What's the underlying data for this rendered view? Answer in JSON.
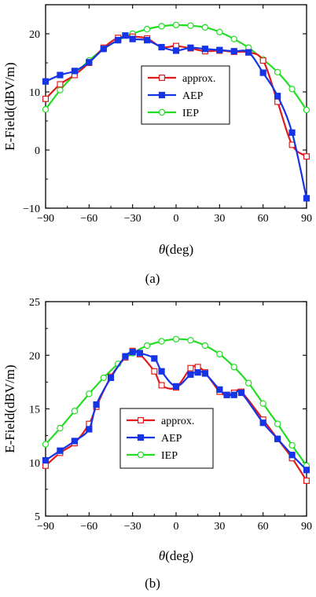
{
  "chart_data": [
    {
      "type": "line",
      "panel_label": "(a)",
      "xlabel": "θ(deg)",
      "ylabel": "E-Field(dBV/m)",
      "xlim": [
        -90,
        90
      ],
      "ylim": [
        -10,
        25
      ],
      "xticks": [
        "−90",
        "−60",
        "−30",
        "0",
        "30",
        "60",
        "90"
      ],
      "yticks": [
        "−10",
        "0",
        "10",
        "20"
      ],
      "legend_position": "center-right",
      "series": [
        {
          "name": "approx.",
          "color": "#e31a1c",
          "marker": "open-square",
          "x": [
            -90,
            -80,
            -70,
            -60,
            -50,
            -40,
            -30,
            -20,
            -10,
            0,
            10,
            20,
            30,
            40,
            50,
            60,
            70,
            80,
            90
          ],
          "y": [
            8.8,
            11.3,
            12.9,
            15.0,
            17.6,
            19.3,
            19.5,
            19.2,
            17.7,
            17.9,
            17.5,
            17.0,
            17.1,
            16.9,
            16.8,
            15.4,
            8.3,
            0.9,
            -1.1
          ]
        },
        {
          "name": "AEP",
          "color": "#1434e6",
          "marker": "filled-square",
          "x": [
            -90,
            -80,
            -70,
            -60,
            -50,
            -40,
            -35,
            -30,
            -20,
            -10,
            0,
            10,
            20,
            30,
            40,
            50,
            60,
            70,
            80,
            90
          ],
          "y": [
            11.8,
            12.9,
            13.6,
            15.1,
            17.4,
            18.9,
            19.7,
            19.1,
            18.9,
            17.7,
            17.1,
            17.6,
            17.4,
            17.2,
            17.0,
            16.8,
            13.3,
            9.3,
            3.0,
            -8.3
          ]
        },
        {
          "name": "IEP",
          "color": "#22dd22",
          "marker": "open-circle",
          "x": [
            -90,
            -80,
            -70,
            -60,
            -50,
            -40,
            -30,
            -20,
            -10,
            0,
            10,
            20,
            30,
            40,
            50,
            60,
            70,
            80,
            90
          ],
          "y": [
            7.0,
            10.3,
            13.0,
            15.4,
            17.4,
            18.9,
            20.0,
            20.8,
            21.3,
            21.5,
            21.4,
            21.1,
            20.3,
            19.1,
            17.6,
            15.6,
            13.4,
            10.5,
            6.9
          ]
        }
      ]
    },
    {
      "type": "line",
      "panel_label": "(b)",
      "xlabel": "θ(deg)",
      "ylabel": "E-Field(dBV/m)",
      "xlim": [
        -90,
        90
      ],
      "ylim": [
        5,
        25
      ],
      "xticks": [
        "−90",
        "−60",
        "−30",
        "0",
        "30",
        "60",
        "90"
      ],
      "yticks": [
        "5",
        "10",
        "15",
        "20",
        "25"
      ],
      "legend_position": "bottom-center",
      "series": [
        {
          "name": "approx.",
          "color": "#e31a1c",
          "marker": "open-square",
          "x": [
            -90,
            -80,
            -70,
            -60,
            -55,
            -45,
            -35,
            -30,
            -25,
            -15,
            -10,
            0,
            10,
            15,
            20,
            30,
            35,
            40,
            45,
            60,
            70,
            80,
            90
          ],
          "y": [
            9.7,
            10.9,
            11.8,
            13.6,
            15.2,
            18.0,
            19.8,
            20.4,
            20.1,
            18.5,
            17.2,
            17.0,
            18.8,
            18.9,
            18.4,
            16.6,
            16.3,
            16.5,
            16.6,
            14.0,
            12.2,
            10.4,
            8.3
          ]
        },
        {
          "name": "AEP",
          "color": "#1434e6",
          "marker": "filled-square",
          "x": [
            -90,
            -80,
            -70,
            -60,
            -55,
            -45,
            -35,
            -30,
            -25,
            -15,
            -10,
            0,
            10,
            15,
            20,
            30,
            35,
            40,
            45,
            60,
            70,
            80,
            90
          ],
          "y": [
            10.2,
            11.1,
            12.0,
            13.1,
            15.4,
            17.9,
            19.9,
            20.3,
            20.2,
            19.7,
            18.5,
            17.1,
            18.2,
            18.4,
            18.3,
            16.8,
            16.3,
            16.3,
            16.5,
            13.7,
            12.2,
            10.7,
            9.3
          ]
        },
        {
          "name": "IEP",
          "color": "#22dd22",
          "marker": "open-circle",
          "x": [
            -90,
            -80,
            -70,
            -60,
            -50,
            -40,
            -30,
            -20,
            -10,
            0,
            10,
            20,
            30,
            40,
            50,
            60,
            70,
            80,
            90
          ],
          "y": [
            11.7,
            13.2,
            14.8,
            16.4,
            17.9,
            19.2,
            20.2,
            20.9,
            21.3,
            21.5,
            21.4,
            20.9,
            20.1,
            18.9,
            17.4,
            15.5,
            13.6,
            11.6,
            9.7
          ]
        }
      ]
    }
  ]
}
